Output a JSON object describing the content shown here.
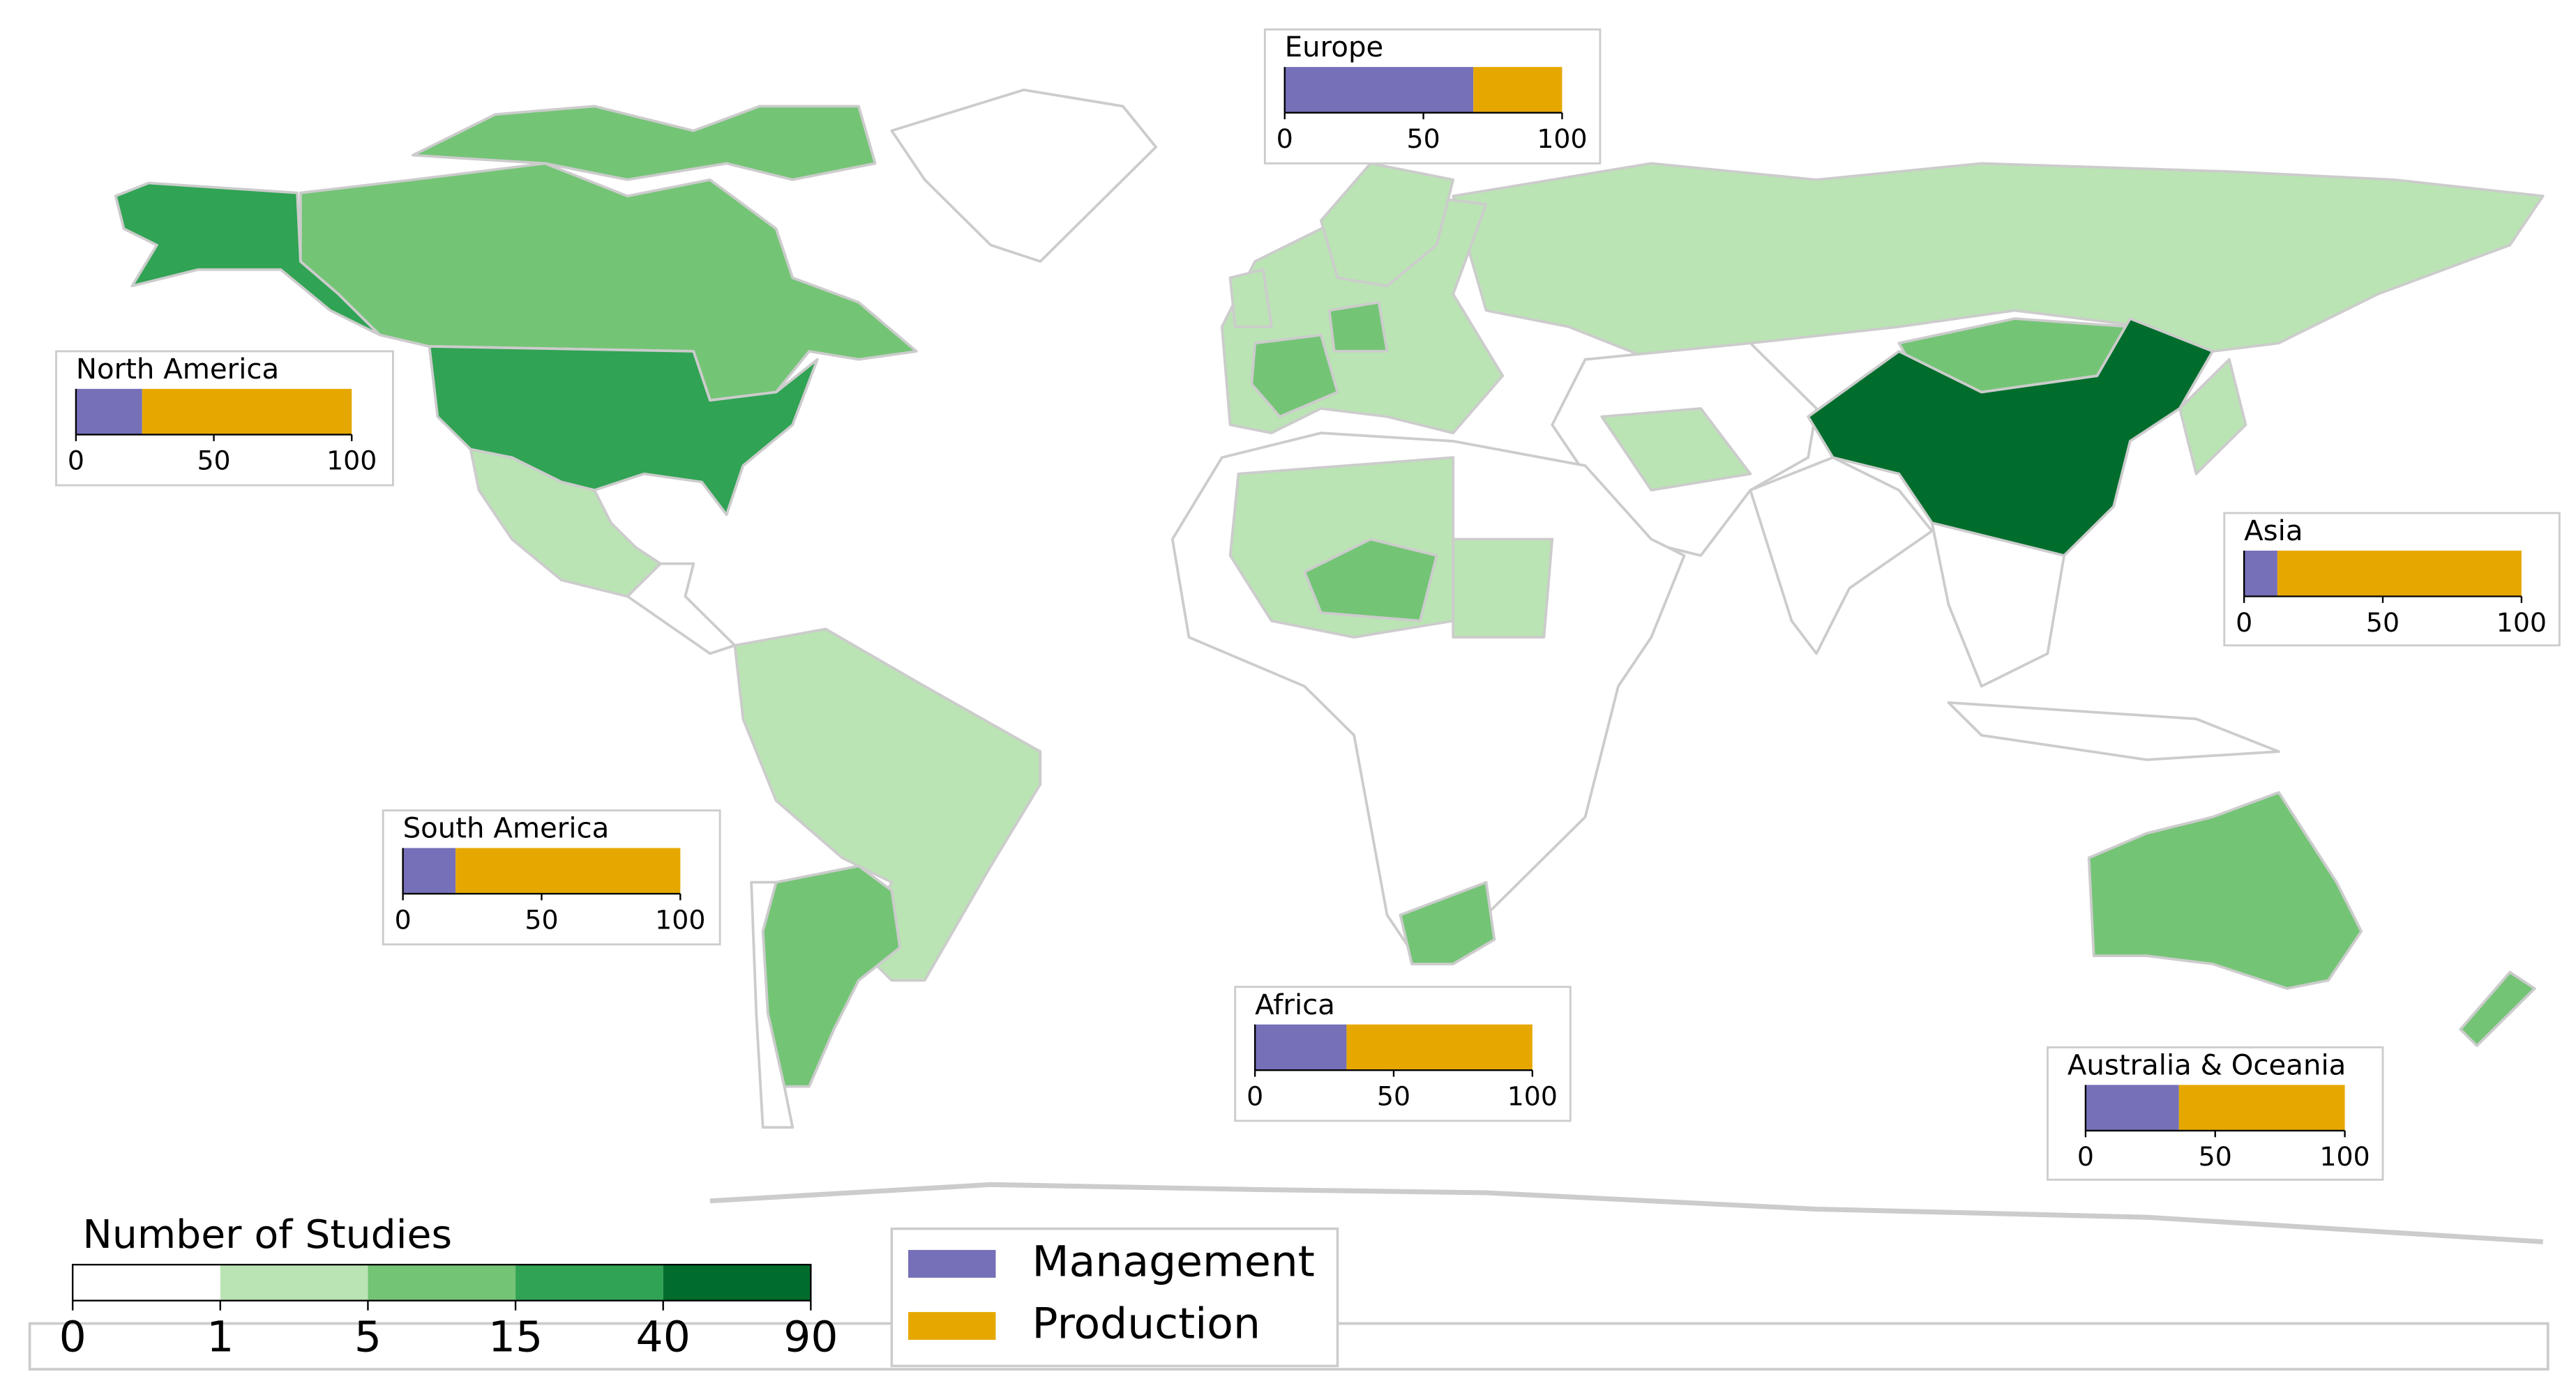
{
  "chart_data": [
    {
      "type": "stacked-barh",
      "title": "Europe",
      "xlim": [
        0,
        100
      ],
      "xticks": [
        0,
        50,
        100
      ],
      "series": [
        {
          "name": "Management",
          "color": "#7570b8",
          "values": [
            68
          ]
        },
        {
          "name": "Production",
          "color": "#e6a800",
          "values": [
            32
          ]
        }
      ]
    },
    {
      "type": "stacked-barh",
      "title": "North America",
      "xlim": [
        0,
        100
      ],
      "xticks": [
        0,
        50,
        100
      ],
      "series": [
        {
          "name": "Management",
          "color": "#7570b8",
          "values": [
            24
          ]
        },
        {
          "name": "Production",
          "color": "#e6a800",
          "values": [
            76
          ]
        }
      ]
    },
    {
      "type": "stacked-barh",
      "title": "Asia",
      "xlim": [
        0,
        100
      ],
      "xticks": [
        0,
        50,
        100
      ],
      "series": [
        {
          "name": "Management",
          "color": "#7570b8",
          "values": [
            12
          ]
        },
        {
          "name": "Production",
          "color": "#e6a800",
          "values": [
            88
          ]
        }
      ]
    },
    {
      "type": "stacked-barh",
      "title": "South America",
      "xlim": [
        0,
        100
      ],
      "xticks": [
        0,
        50,
        100
      ],
      "series": [
        {
          "name": "Management",
          "color": "#7570b8",
          "values": [
            19
          ]
        },
        {
          "name": "Production",
          "color": "#e6a800",
          "values": [
            81
          ]
        }
      ]
    },
    {
      "type": "stacked-barh",
      "title": "Africa",
      "xlim": [
        0,
        100
      ],
      "xticks": [
        0,
        50,
        100
      ],
      "series": [
        {
          "name": "Management",
          "color": "#7570b8",
          "values": [
            33
          ]
        },
        {
          "name": "Production",
          "color": "#e6a800",
          "values": [
            67
          ]
        }
      ]
    },
    {
      "type": "stacked-barh",
      "title": "Australia & Oceania",
      "xlim": [
        0,
        100
      ],
      "xticks": [
        0,
        50,
        100
      ],
      "series": [
        {
          "name": "Management",
          "color": "#7570b8",
          "values": [
            36
          ]
        },
        {
          "name": "Production",
          "color": "#e6a800",
          "values": [
            64
          ]
        }
      ]
    }
  ],
  "colorbar": {
    "title": "Number of Studies",
    "ticks": [
      0,
      1,
      5,
      15,
      40,
      90
    ],
    "colors": [
      "#ffffff",
      "#bae4b3",
      "#74c476",
      "#31a354",
      "#006d2c"
    ]
  }
}
